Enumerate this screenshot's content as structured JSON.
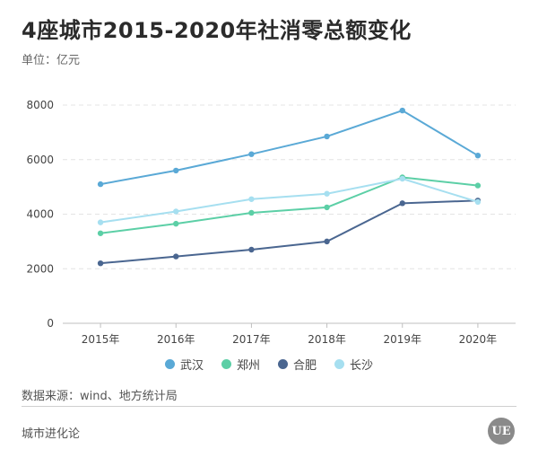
{
  "header": {
    "title": "4座城市2015-2020年社消零总额变化",
    "unit": "单位：亿元"
  },
  "footer": {
    "source": "数据来源：wind、地方统计局",
    "brand": "城市进化论",
    "logo_text": "UE"
  },
  "chart_data": {
    "type": "line",
    "title": "4座城市2015-2020年社消零总额变化",
    "ylabel": "亿元",
    "categories": [
      "2015年",
      "2016年",
      "2017年",
      "2018年",
      "2019年",
      "2020年"
    ],
    "ylim": [
      0,
      8000
    ],
    "yticks": [
      "0",
      "2000",
      "4000",
      "6000",
      "8000"
    ],
    "ytick_values": [
      0,
      2000,
      4000,
      6000,
      8000
    ],
    "grid": true,
    "legend_position": "bottom",
    "series": [
      {
        "name": "武汉",
        "color": "#5aa9d6",
        "values": [
          5100,
          5600,
          6200,
          6850,
          7800,
          6150
        ]
      },
      {
        "name": "郑州",
        "color": "#5ccfa6",
        "values": [
          3300,
          3650,
          4050,
          4250,
          5350,
          5050
        ]
      },
      {
        "name": "合肥",
        "color": "#4a6690",
        "values": [
          2200,
          2450,
          2700,
          3000,
          4400,
          4500
        ]
      },
      {
        "name": "长沙",
        "color": "#a6dff0",
        "values": [
          3700,
          4100,
          4550,
          4750,
          5300,
          4450
        ]
      }
    ]
  }
}
